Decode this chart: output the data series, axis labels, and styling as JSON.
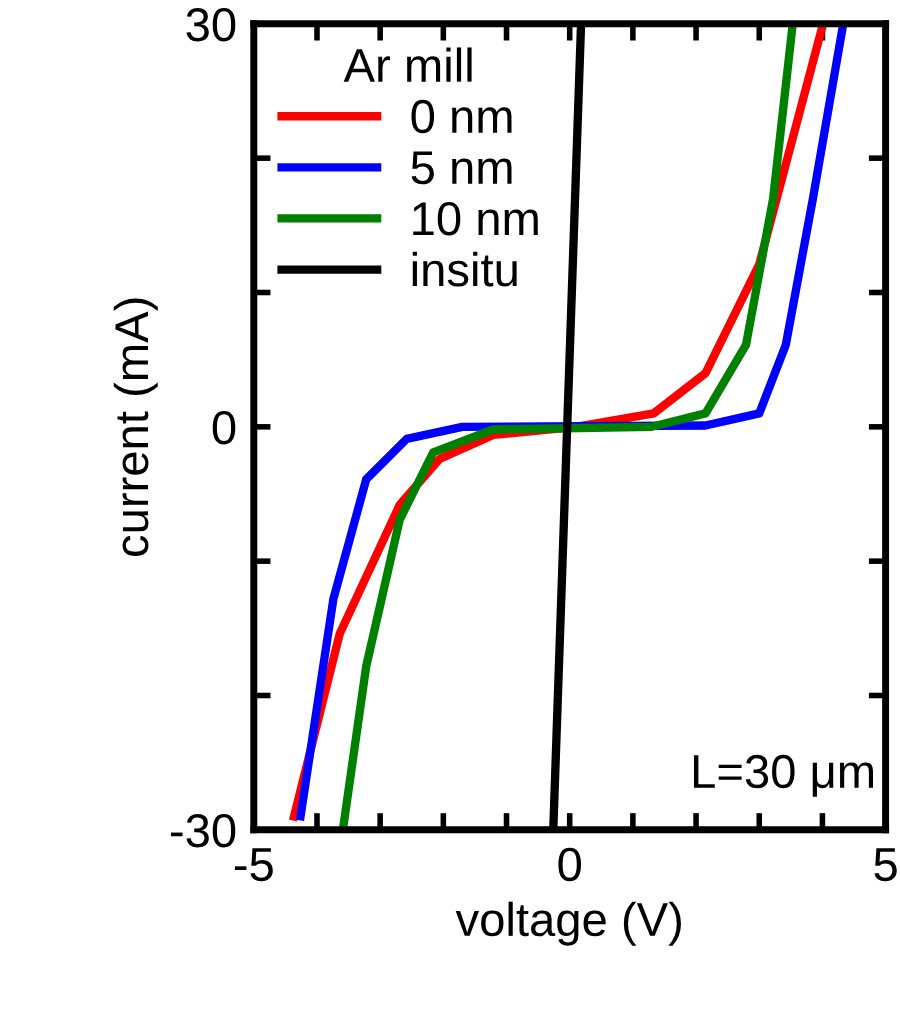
{
  "chart_data": {
    "type": "line",
    "xlabel": "voltage (V)",
    "ylabel": "current (mA)",
    "legend_title": "Ar mill",
    "legend": "top left",
    "grid": false,
    "line_style": "solid",
    "marker": "none",
    "xlim": [
      -5,
      5
    ],
    "ylim": [
      -30,
      30
    ],
    "xticks": [
      -5,
      {
        "value": -4,
        "label": null
      },
      {
        "value": -3,
        "label": null
      },
      {
        "value": -2,
        "label": null
      },
      {
        "value": -1,
        "label": null
      },
      0,
      {
        "value": 1,
        "label": null
      },
      {
        "value": 2,
        "label": null
      },
      {
        "value": 3,
        "label": null
      },
      {
        "value": 4,
        "label": null
      },
      5
    ],
    "yticks": [
      -30,
      {
        "value": -20,
        "label": null
      },
      {
        "value": -10,
        "label": null
      },
      0,
      {
        "value": 10,
        "label": null
      },
      {
        "value": 20,
        "label": null
      },
      30
    ],
    "annotations": [
      "L=30 μm"
    ],
    "series": [
      {
        "name": "0 nm",
        "color": "#ff0000",
        "x": [
          -4.38,
          -3.64,
          -2.69,
          -2.06,
          -1.21,
          0.1,
          1.33,
          2.15,
          3.0,
          4.01
        ],
        "values": [
          -29.3,
          -15.4,
          -5.8,
          -2.4,
          -0.6,
          0,
          1.0,
          4.0,
          12.1,
          30
        ]
      },
      {
        "name": "5 nm",
        "color": "#0000ff",
        "x": [
          -4.27,
          -3.74,
          -3.22,
          -2.58,
          -1.7,
          2.15,
          3.0,
          3.42,
          3.85,
          4.33
        ],
        "values": [
          -29.3,
          -12.8,
          -3.9,
          -0.9,
          0,
          0.1,
          1.0,
          6.1,
          17,
          30
        ]
      },
      {
        "name": "10 nm",
        "color": "#008000",
        "x": [
          -3.59,
          -3.22,
          -2.69,
          -2.16,
          -1.21,
          1.3,
          2.15,
          2.79,
          3.22,
          3.53
        ],
        "values": [
          -30,
          -17.8,
          -6.9,
          -1.9,
          -0.2,
          0,
          1.0,
          6.1,
          17,
          30
        ]
      },
      {
        "name": "insitu",
        "color": "#000000",
        "x": [
          -0.26,
          0.18
        ],
        "values": [
          -30,
          30
        ]
      }
    ]
  }
}
